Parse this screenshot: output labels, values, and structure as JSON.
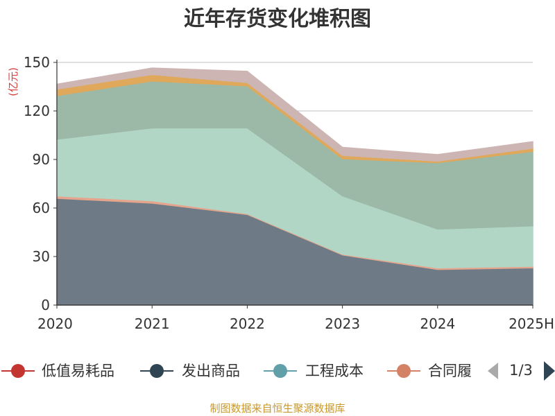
{
  "chart_data": {
    "type": "area",
    "stacked": true,
    "title": "近年存货变化堆积图",
    "ylabel": "(亿元)",
    "ylim": [
      0,
      150
    ],
    "yticks": [
      0,
      30,
      60,
      90,
      120,
      150
    ],
    "grid": true,
    "categories": [
      "2020",
      "2021",
      "2022",
      "2023",
      "2024",
      "2025H"
    ],
    "series": [
      {
        "name": "发出商品",
        "color": "#6e7b86",
        "values": [
          66,
          63,
          56,
          31,
          22,
          23
        ]
      },
      {
        "name": "合同履约成本",
        "color": "#e5a48c",
        "values": [
          1.5,
          1.5,
          0.5,
          0.5,
          1,
          1
        ]
      },
      {
        "name": "",
        "color": "#b2d6c5",
        "values": [
          35,
          45,
          53,
          36,
          24,
          25
        ]
      },
      {
        "name": "",
        "color": "#9cb9a7",
        "values": [
          27,
          29,
          26,
          23,
          41,
          46
        ]
      },
      {
        "name": "",
        "color": "#e0a85a",
        "values": [
          4,
          4,
          2,
          2,
          1,
          2
        ]
      },
      {
        "name": "",
        "color": "#ccb5b3",
        "values": [
          3,
          4,
          7,
          5,
          4,
          4
        ]
      }
    ],
    "legend": {
      "position": "bottom",
      "items": [
        {
          "name": "低值易耗品",
          "color": "#c23531"
        },
        {
          "name": "发出商品",
          "color": "#2f4554"
        },
        {
          "name": "工程成本",
          "color": "#61a0a8"
        },
        {
          "name": "合同履",
          "color": "#d48265"
        }
      ],
      "page": "1/3"
    }
  },
  "source": "制图数据来自恒生聚源数据库"
}
